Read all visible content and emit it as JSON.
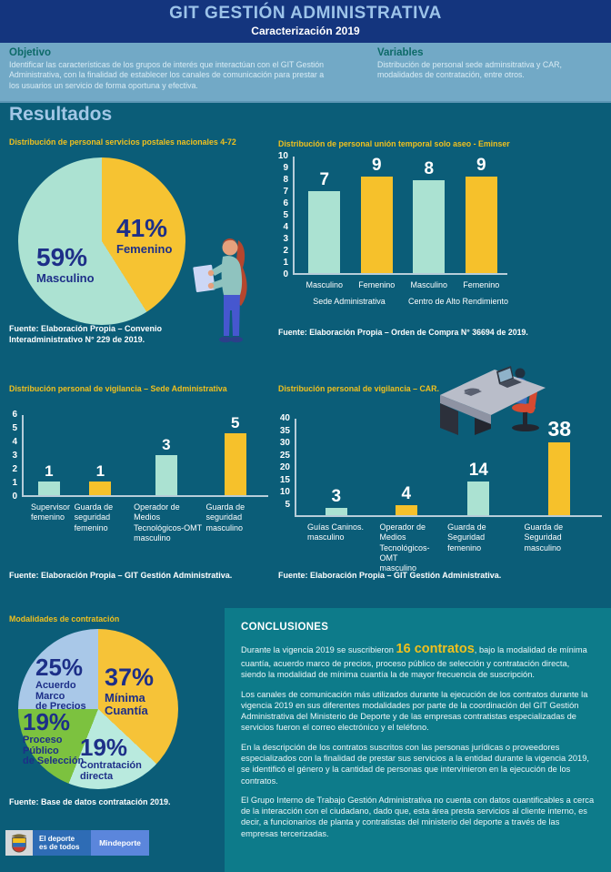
{
  "header": {
    "title": "GIT GESTIÓN ADMINISTRATIVA",
    "subtitle": "Caracterización 2019"
  },
  "objetivo": {
    "heading": "Objetivo",
    "text": "Identificar las características de los grupos de interés que interactúan con el GIT Gestión Administrativa, con la finalidad de establecer los canales de comunicación para prestar a los usuarios un servicio de forma oportuna y efectiva."
  },
  "variables": {
    "heading": "Variables",
    "text": "Distribución de personal sede adminsitrativa y CAR, modalidades de contratación, entre otros."
  },
  "results_heading": "Resultados",
  "palette": {
    "background_teal": "#0b5d78",
    "header_navy": "#14357e",
    "band_blue": "#72a9c6",
    "title_yellow": "#f0c01e",
    "mint": "#abe2d2",
    "bar_yellow": "#f6c12b",
    "navy_label": "#1d2f88",
    "conclusions_teal": "#0d7b8a"
  },
  "chart_data": [
    {
      "id": "pie_postales",
      "type": "pie",
      "title": "Distribución de personal servicios postales nacionales 4-72",
      "slices": [
        {
          "label": "Femenino",
          "value": 41,
          "display": "41%",
          "color": "#f6c332"
        },
        {
          "label": "Masculino",
          "value": 59,
          "display": "59%",
          "color": "#ace2d2"
        }
      ],
      "legend_position": "inside",
      "source": "Fuente: Elaboración Propia – Convenio\nInteradministrativo N° 229 de 2019."
    },
    {
      "id": "bar_eminser",
      "type": "bar",
      "title": "Distribución de personal unión temporal solo aseo - Eminser",
      "categories": [
        "Masculino",
        "Femenino",
        "Masculino",
        "Femenino"
      ],
      "group_labels": [
        "Sede Administrativa",
        "Centro de Alto Rendimiento"
      ],
      "values": [
        7,
        9,
        8,
        9
      ],
      "colors": [
        "#abe2d2",
        "#f6c12b",
        "#abe2d2",
        "#f6c12b"
      ],
      "ylim": [
        0,
        10
      ],
      "yticks": [
        0,
        1,
        2,
        3,
        4,
        5,
        6,
        7,
        8,
        9,
        10
      ],
      "grid": false,
      "source": "Fuente: Elaboración Propia – Orden de Compra N° 36694 de 2019."
    },
    {
      "id": "bar_vigilancia_sede",
      "type": "bar",
      "title": "Distribución personal de vigilancia – Sede Administrativa",
      "categories": [
        "Supervisor\nfemenino",
        "Guarda de\nseguridad\nfemenino",
        "Operador de\nMedios\nTecnológicos-OMT\nmasculino",
        "Guarda de\nseguridad\nmasculino"
      ],
      "values": [
        1,
        1,
        3,
        5
      ],
      "colors": [
        "#abe2d2",
        "#f6c12b",
        "#abe2d2",
        "#f6c12b"
      ],
      "ylim": [
        0,
        6
      ],
      "yticks": [
        0,
        1,
        2,
        3,
        4,
        5,
        6
      ],
      "grid": false,
      "source": "Fuente: Elaboración Propia – GIT Gestión Administrativa."
    },
    {
      "id": "bar_vigilancia_car",
      "type": "bar",
      "title": "Distribución personal de vigilancia – CAR.",
      "categories": [
        "Guías Caninos.\nmasculino",
        "Operador de\nMedios\nTecnológicos-OMT\nmasculino",
        "Guarda de\nSeguridad\nfemenino",
        "Guarda de\nSeguridad\nmasculino"
      ],
      "values": [
        3,
        4,
        14,
        38
      ],
      "colors": [
        "#abe2d2",
        "#f6c12b",
        "#abe2d2",
        "#f6c12b"
      ],
      "ylim": [
        0,
        40
      ],
      "yticks": [
        5,
        10,
        15,
        20,
        25,
        30,
        35,
        40
      ],
      "grid": false,
      "source": "Fuente: Elaboración Propia – GIT Gestión Administrativa."
    },
    {
      "id": "pie_modalidades",
      "type": "pie",
      "title": "Modalidades de contratación",
      "slices": [
        {
          "label": "Mínima\nCuantía",
          "value": 37,
          "display": "37%",
          "color": "#f6c338"
        },
        {
          "label": "Contratación\ndirecta",
          "value": 19,
          "display": "19%",
          "color": "#b9eade"
        },
        {
          "label": "Proceso\nPúblico\nde Selección",
          "value": 19,
          "display": "19%",
          "color": "#7cc23f"
        },
        {
          "label": "Acuerdo\nMarco\nde Precios",
          "value": 25,
          "display": "25%",
          "color": "#a9c8e8"
        }
      ],
      "legend_position": "inside",
      "source": "Fuente: Base de datos contratación 2019."
    }
  ],
  "conclusions": {
    "heading": "CONCLUSIONES",
    "p1_before": "Durante la vigencia 2019 se suscribieron ",
    "p1_highlight": "16 contratos",
    "p1_after": ", bajo la modalidad de mínima cuantía, acuerdo marco de precios, proceso público de selección y contratación directa, siendo la modalidad de mínima cuantía la de mayor frecuencia de suscripción.",
    "p2": "Los canales de comunicación más utilizados durante la ejecución de los contratos durante la vigencia 2019 en sus diferentes modalidades por parte de la coordinación del GIT Gestión Administrativa del Ministerio de Deporte y de las empresas contratistas especializadas de servicios fueron el correo electrónico y el teléfono.",
    "p3": "En la descripción de los contratos suscritos con las personas jurídicas o proveedores especializados con la finalidad de prestar sus servicios a la entidad durante la vigencia 2019, se identificó el género y la cantidad de personas que intervinieron en la ejecución de los contratos.",
    "p4": "El Grupo Interno de Trabajo Gestión Administrativa no cuenta con datos cuantificables a cerca de la interacción con el ciudadano, dado que, esta área presta servicios al cliente interno, es decir, a funcionarios de planta y contratistas del ministerio del deporte a través de las empresas tercerizadas."
  },
  "footer": {
    "brand_left": "El deporte\nes de todos",
    "brand_right": "Mindeporte"
  }
}
